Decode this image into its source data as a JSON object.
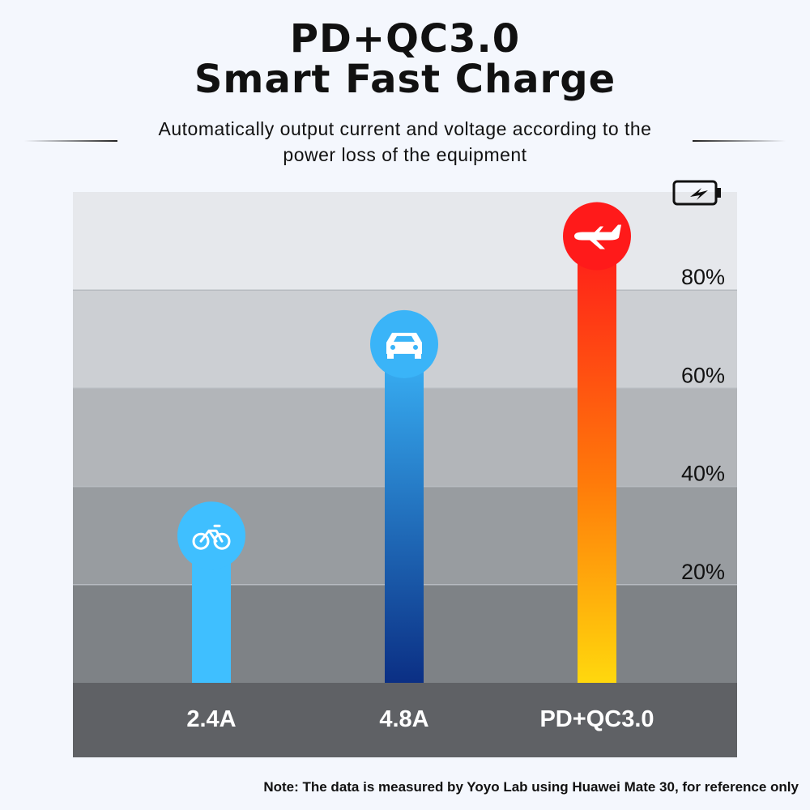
{
  "header": {
    "title_line1": "PD+QC3.0",
    "title_line2": "Smart Fast Charge",
    "subtitle_line1": "Automatically output current and voltage according to the",
    "subtitle_line2": "power loss of the equipment"
  },
  "chart_data": {
    "type": "bar",
    "categories": [
      "2.4A",
      "4.8A",
      "PD+QC3.0"
    ],
    "values": [
      30,
      69,
      91
    ],
    "unit": "%",
    "ylim": [
      0,
      100
    ],
    "y_ticks": [
      "20%",
      "40%",
      "60%",
      "80%"
    ],
    "y_tick_values": [
      20,
      40,
      60,
      80
    ],
    "grid": true,
    "bar_icons": [
      "bicycle-icon",
      "car-icon",
      "airplane-icon"
    ],
    "top_right_icon": "battery-charging-icon",
    "colors": {
      "bar1": "#3fbfff",
      "bar2_top": "#3ab4f8",
      "bar2_bottom": "#0b2f84",
      "bar3_top": "#ff1a1a",
      "bar3_bottom": "#ffd80d",
      "band_top": "#e6e8ec",
      "band_bottom": "#7e8286",
      "axis_bar": "#5f6165"
    }
  },
  "footer": {
    "note": "Note: The data is measured by Yoyo Lab using Huawei Mate 30, for reference only"
  }
}
